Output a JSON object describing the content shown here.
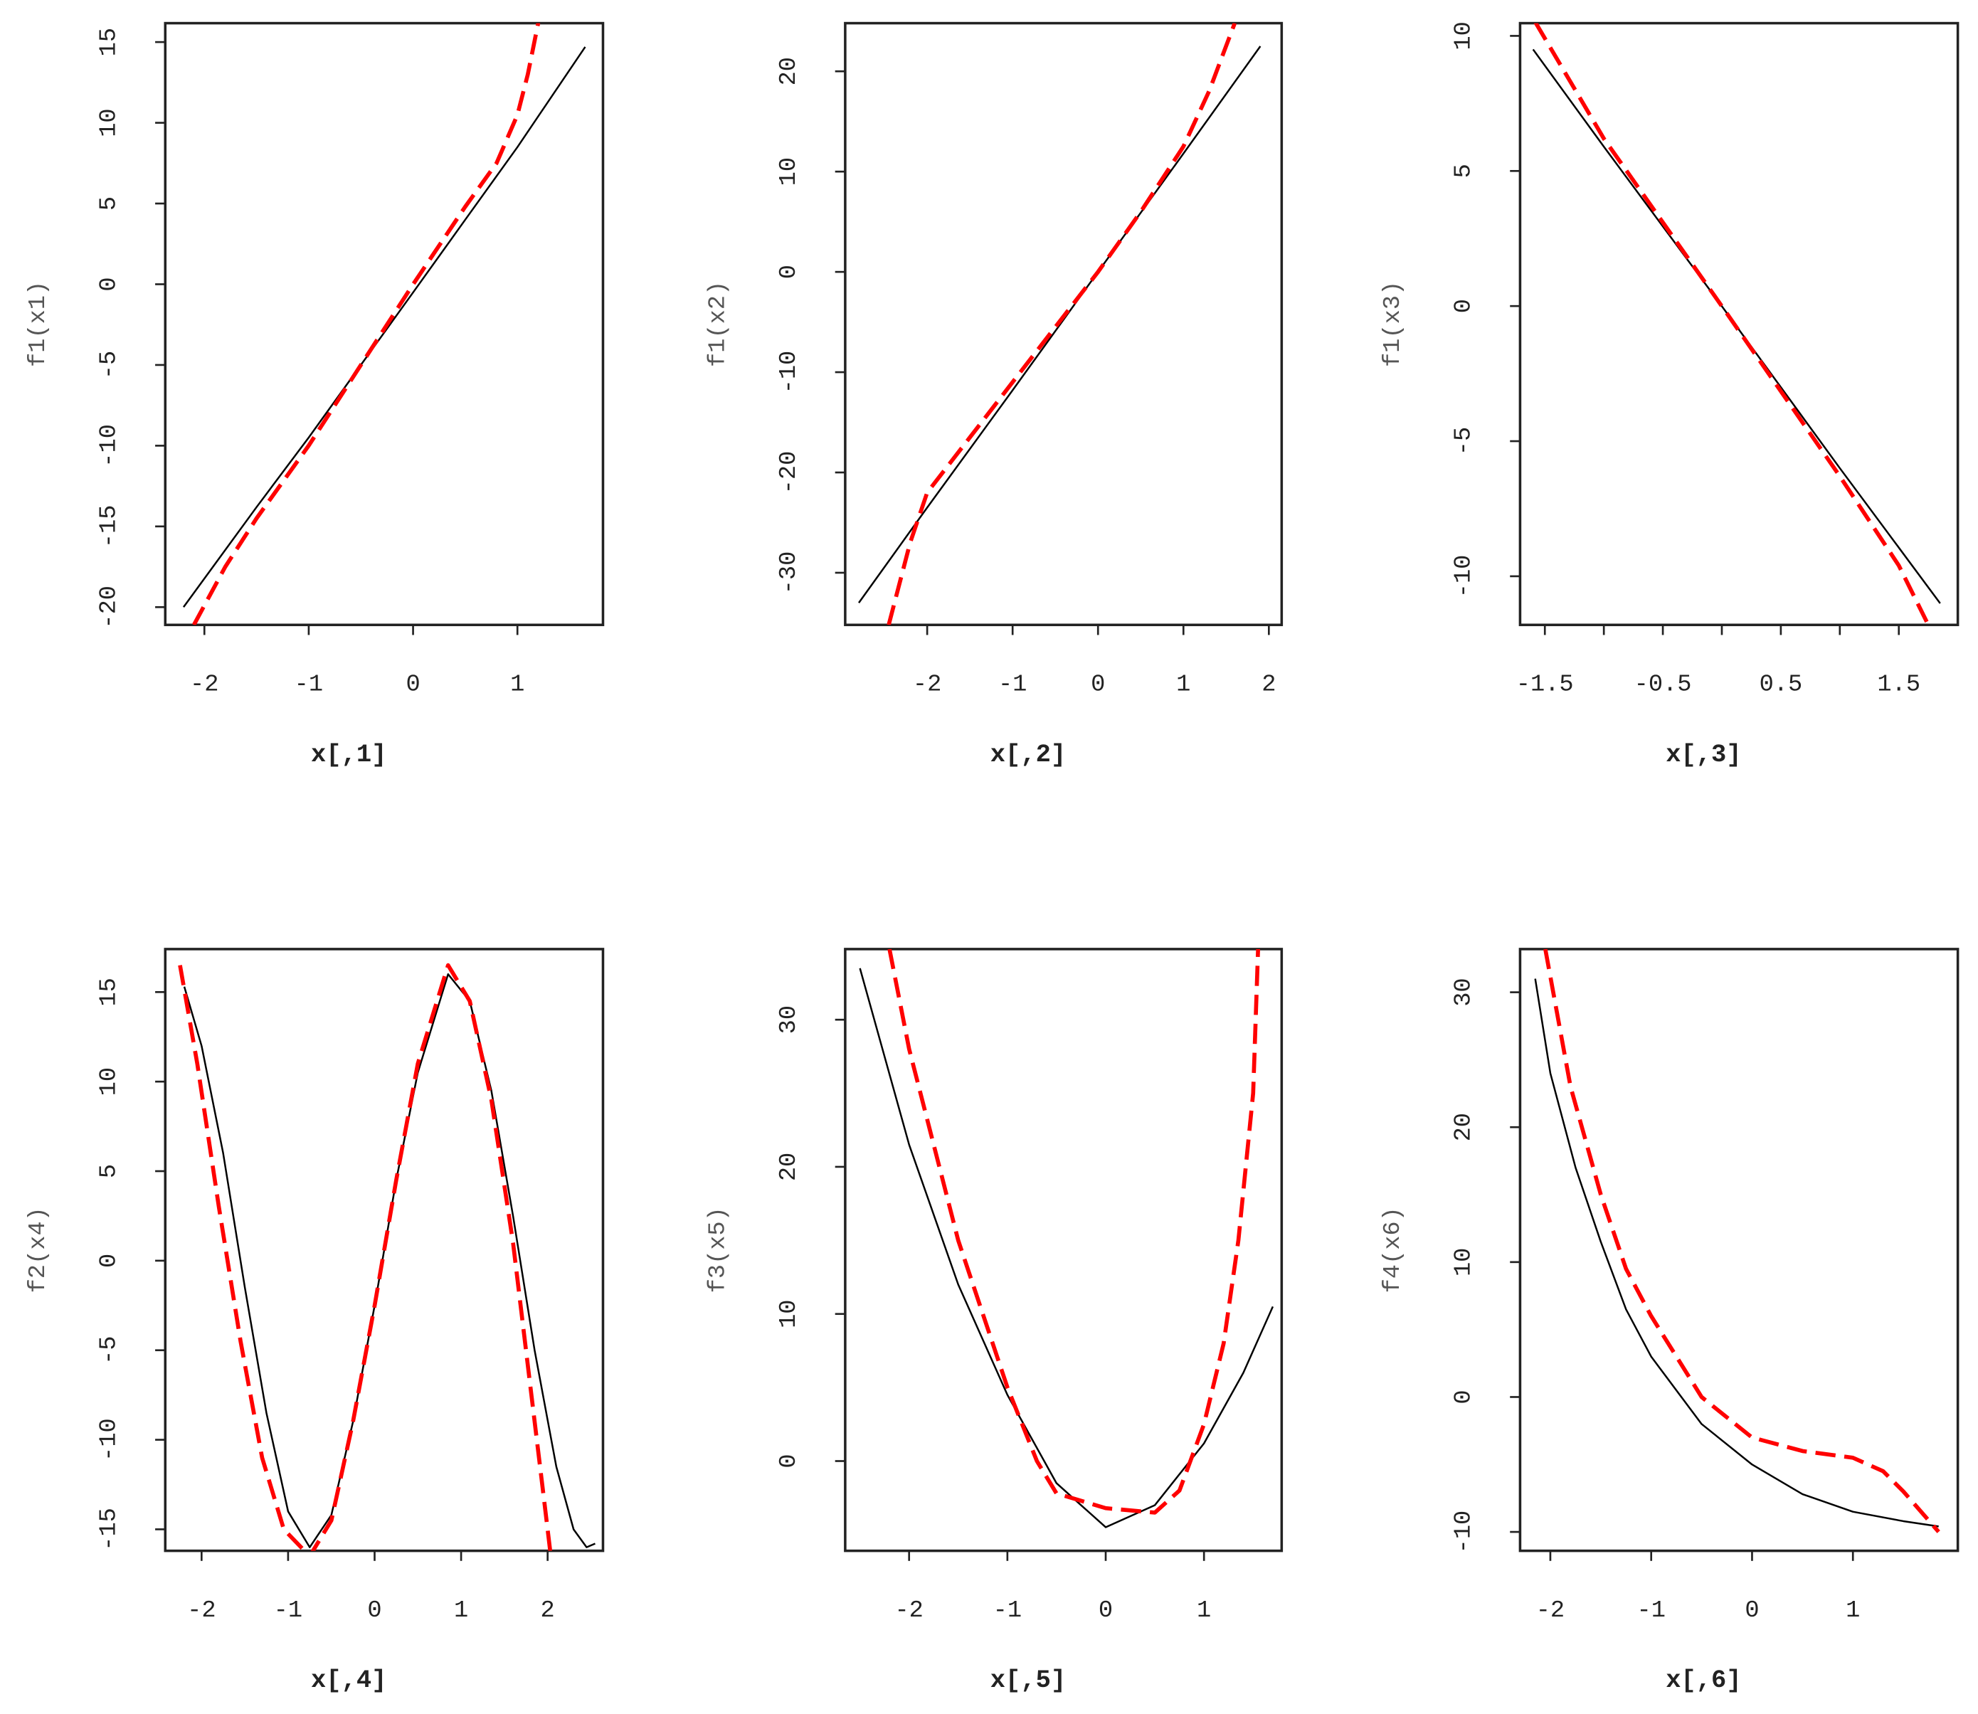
{
  "chart_data": [
    {
      "type": "line",
      "xlabel": "x[,1]",
      "ylabel": "f1(x1)",
      "xlim": [
        -2.375,
        1.82
      ],
      "ylim": [
        -21.1,
        16.17
      ],
      "xticks": [
        "-2",
        "-1",
        "0",
        "1"
      ],
      "yticks": [
        "-20",
        "-15",
        "-10",
        "-5",
        "0",
        "5",
        "10",
        "15"
      ],
      "series": [
        {
          "style": "solid",
          "color": "#000000",
          "x": [
            -2.2,
            -1.5,
            -1,
            -0.5,
            0,
            0.5,
            1,
            1.65
          ],
          "y": [
            -20,
            -13.8,
            -9.5,
            -5,
            -0.5,
            4,
            8.5,
            14.7
          ]
        },
        {
          "style": "dashed",
          "color": "#ff0000",
          "x": [
            -2.1,
            -1.8,
            -1.5,
            -1,
            -0.5,
            0,
            0.5,
            0.8,
            1,
            1.1,
            1.2
          ],
          "y": [
            -21.1,
            -17.5,
            -14.5,
            -10,
            -5,
            0,
            4.8,
            7.5,
            10.5,
            13,
            16.2
          ]
        }
      ]
    },
    {
      "type": "line",
      "xlabel": "x[,2]",
      "ylabel": "f1(x2)",
      "xlim": [
        -2.96,
        2.15
      ],
      "ylim": [
        -35.2,
        24.8
      ],
      "xticks": [
        "-2",
        "-1",
        "0",
        "1",
        "2"
      ],
      "yticks": [
        "-30",
        "-20",
        "-10",
        "0",
        "10",
        "20"
      ],
      "series": [
        {
          "style": "solid",
          "color": "#000000",
          "x": [
            -2.8,
            -2,
            -1,
            0,
            1,
            1.9
          ],
          "y": [
            -33,
            -23.5,
            -11.8,
            0,
            11.8,
            22.5
          ]
        },
        {
          "style": "dashed",
          "color": "#ff0000",
          "x": [
            -2.45,
            -2.2,
            -2,
            -1.5,
            -1,
            0,
            0.5,
            1,
            1.3,
            1.6
          ],
          "y": [
            -35.2,
            -27,
            -22,
            -16.5,
            -11,
            0,
            6,
            12.5,
            18,
            24.8
          ]
        }
      ]
    },
    {
      "type": "line",
      "xlabel": "x[,3]",
      "ylabel": "f1(x3)",
      "xlim": [
        -1.71,
        2.0
      ],
      "ylim": [
        -11.8,
        10.47
      ],
      "xticks": [
        "-1.5",
        "-0.5",
        "0.5",
        "1.5"
      ],
      "xtick_values": [
        -1.5,
        -1,
        -0.5,
        0,
        0.5,
        1,
        1.5
      ],
      "yticks": [
        "-10",
        "-5",
        "0",
        "5",
        "10"
      ],
      "series": [
        {
          "style": "solid",
          "color": "#000000",
          "x": [
            -1.6,
            -1,
            0,
            1,
            1.85
          ],
          "y": [
            9.5,
            5.9,
            0,
            -6,
            -11
          ]
        },
        {
          "style": "dashed",
          "color": "#ff0000",
          "x": [
            -1.58,
            -1,
            0,
            1,
            1.5,
            1.75
          ],
          "y": [
            10.5,
            6.2,
            0,
            -6.3,
            -9.6,
            -11.8
          ]
        }
      ]
    },
    {
      "type": "line",
      "xlabel": "x[,4]",
      "ylabel": "f2(x4)",
      "xlim": [
        -2.42,
        2.64
      ],
      "ylim": [
        -16.2,
        17.4
      ],
      "xticks": [
        "-2",
        "-1",
        "0",
        "1",
        "2"
      ],
      "yticks": [
        "-15",
        "-10",
        "-5",
        "0",
        "5",
        "10",
        "15"
      ],
      "series": [
        {
          "style": "solid",
          "color": "#000000",
          "x": [
            -2.2,
            -2,
            -1.75,
            -1.5,
            -1.25,
            -1,
            -0.75,
            -0.5,
            -0.25,
            0,
            0.25,
            0.5,
            0.85,
            1.1,
            1.35,
            1.6,
            1.85,
            2.1,
            2.3,
            2.45,
            2.55
          ],
          "y": [
            15.3,
            12,
            6,
            -1.5,
            -8.5,
            -14,
            -16,
            -14.2,
            -9,
            -2.5,
            4.5,
            10.5,
            16,
            14.5,
            9.5,
            2.5,
            -5,
            -11.5,
            -15,
            -16,
            -15.8
          ]
        },
        {
          "style": "dashed",
          "color": "#ff0000",
          "x": [
            -2.25,
            -2.05,
            -1.8,
            -1.55,
            -1.3,
            -1.05,
            -0.75,
            -0.5,
            -0.25,
            0,
            0.25,
            0.5,
            0.85,
            1.1,
            1.35,
            1.6,
            1.8,
            1.95,
            2.05
          ],
          "y": [
            16.5,
            11,
            3,
            -4.5,
            -11,
            -15,
            -16.5,
            -14.5,
            -9,
            -2.5,
            4.5,
            11,
            16.5,
            14.5,
            9,
            1,
            -7,
            -13,
            -17
          ]
        }
      ]
    },
    {
      "type": "line",
      "xlabel": "x[,5]",
      "ylabel": "f3(x5)",
      "xlim": [
        -2.65,
        1.79
      ],
      "ylim": [
        -6.1,
        34.8
      ],
      "xticks": [
        "-2",
        "-1",
        "0",
        "1"
      ],
      "yticks": [
        "0",
        "10",
        "20",
        "30"
      ],
      "series": [
        {
          "style": "solid",
          "color": "#000000",
          "x": [
            -2.5,
            -2,
            -1.5,
            -1,
            -0.5,
            0,
            0.5,
            1,
            1.4,
            1.7
          ],
          "y": [
            33.5,
            21.5,
            12,
            4.5,
            -1.5,
            -4.5,
            -3,
            1.2,
            6,
            10.5
          ]
        },
        {
          "style": "dashed",
          "color": "#ff0000",
          "x": [
            -2.2,
            -2,
            -1.5,
            -1,
            -0.7,
            -0.5,
            0,
            0.5,
            0.75,
            1,
            1.2,
            1.35,
            1.5,
            1.55
          ],
          "y": [
            34.8,
            28,
            15,
            5,
            0,
            -2.2,
            -3.2,
            -3.5,
            -2,
            2.5,
            8,
            15,
            25,
            34.8
          ]
        }
      ]
    },
    {
      "type": "line",
      "xlabel": "x[,6]",
      "ylabel": "f4(x6)",
      "xlim": [
        -2.3,
        2.04
      ],
      "ylim": [
        -11.4,
        33.2
      ],
      "xticks": [
        "-2",
        "-1",
        "0",
        "1"
      ],
      "yticks": [
        "-10",
        "0",
        "10",
        "20",
        "30"
      ],
      "series": [
        {
          "style": "solid",
          "color": "#000000",
          "x": [
            -2.15,
            -2,
            -1.75,
            -1.5,
            -1.25,
            -1,
            -0.5,
            0,
            0.5,
            1,
            1.5,
            1.85
          ],
          "y": [
            31,
            24,
            17,
            11.5,
            6.5,
            3,
            -2,
            -5,
            -7.2,
            -8.5,
            -9.2,
            -9.6
          ]
        },
        {
          "style": "dashed",
          "color": "#ff0000",
          "x": [
            -2.05,
            -1.8,
            -1.5,
            -1.25,
            -1,
            -0.5,
            0,
            0.5,
            1,
            1.3,
            1.5,
            1.85
          ],
          "y": [
            33.2,
            23,
            15,
            9.5,
            6,
            0,
            -3,
            -4,
            -4.5,
            -5.5,
            -7,
            -10
          ]
        }
      ]
    }
  ]
}
